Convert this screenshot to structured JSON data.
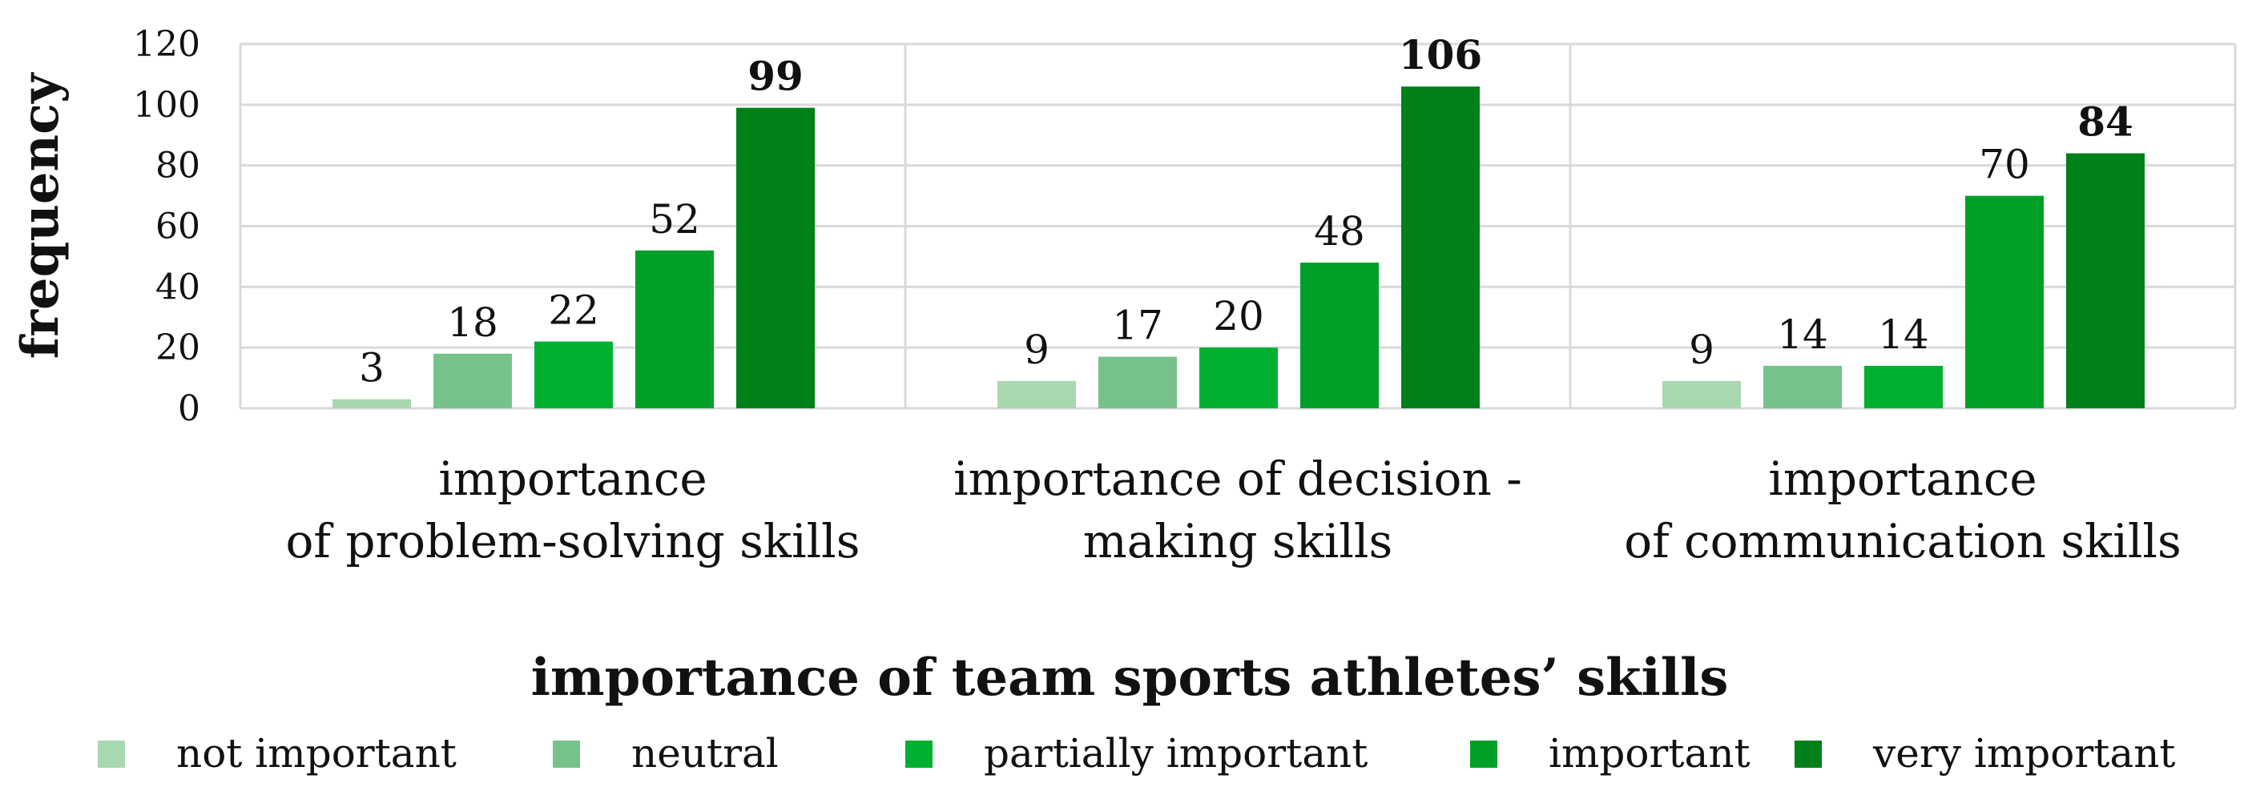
{
  "chart_data": {
    "type": "bar",
    "categories": [
      [
        "importance",
        "of problem-solving skills"
      ],
      [
        "importance of decision -",
        "making skills"
      ],
      [
        "importance",
        "of communication skills"
      ]
    ],
    "series": [
      {
        "name": "not important",
        "values": [
          3,
          9,
          9
        ],
        "color": "#a8d8b0",
        "bold_labels": false
      },
      {
        "name": "neutral",
        "values": [
          18,
          17,
          14
        ],
        "color": "#76c28a",
        "bold_labels": false
      },
      {
        "name": "partially important",
        "values": [
          22,
          20,
          14
        ],
        "color": "#00b030",
        "bold_labels": false
      },
      {
        "name": "important",
        "values": [
          52,
          48,
          70
        ],
        "color": "#00a028",
        "bold_labels": false
      },
      {
        "name": "very important",
        "values": [
          99,
          106,
          84
        ],
        "color": "#008018",
        "bold_labels": true
      }
    ],
    "title": "",
    "xlabel": "importance of team sports athletes’ skills",
    "ylabel": "frequency",
    "ylim": [
      0,
      120
    ],
    "yticks": [
      0,
      20,
      40,
      60,
      80,
      100,
      120
    ],
    "grid": true,
    "legend_position": "bottom"
  }
}
